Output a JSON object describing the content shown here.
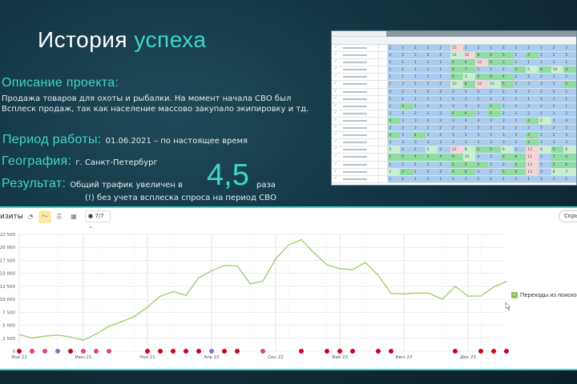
{
  "slide": {
    "title_part1": "История",
    "title_part2": "успеха",
    "description_heading": "Описание проекта:",
    "description": "Продажа товаров для охоты и рыбалки. На момент начала СВО был Всплеск продаж, так как население массово закупало экипировку и тд.",
    "period_heading": "Период работы:",
    "period_value": "01.06.2021 – по настоящее время",
    "geo_heading": "География:",
    "geo_value": "г. Санкт-Петербург",
    "result_heading": "Результат:",
    "result_text": "Общий трафик увеличен в",
    "result_number": "4,5",
    "result_unit": "раза",
    "result_note": "(!) без учета всплеска спроса на период СВО",
    "accent_color": "#3ed7c8"
  },
  "positions_table": {
    "rows": [
      {
        "v": [
          2,
          2,
          2,
          2,
          2,
          15,
          1,
          1,
          1,
          2,
          2,
          2,
          2,
          2,
          2
        ],
        "c": "b b b b b p b b b b b b b b b"
      },
      {
        "v": [
          2,
          2,
          2,
          2,
          2,
          14,
          15,
          8,
          8,
          5,
          2,
          4,
          2,
          2,
          2
        ],
        "c": "b b b b b lg p g g g b g b b b"
      },
      {
        "v": [
          1,
          1,
          1,
          1,
          1,
          8,
          6,
          12,
          9,
          3,
          1,
          1,
          1,
          1,
          1
        ],
        "c": "b b b b b g g p g g b b b b b"
      },
      {
        "v": [
          1,
          1,
          1,
          1,
          1,
          8,
          7,
          1,
          2,
          2,
          4,
          5,
          4,
          10,
          4
        ],
        "c": "b b b b b g g b b b g lg g lg g"
      },
      {
        "v": [
          1,
          1,
          1,
          1,
          1,
          6,
          3,
          6,
          8,
          4,
          2,
          2,
          2,
          1,
          2
        ],
        "c": "b b b b b g lg g g g b b b b b"
      },
      {
        "v": [
          2,
          3,
          2,
          2,
          2,
          10,
          8,
          12,
          10,
          5,
          3,
          3,
          3,
          3,
          5
        ],
        "c": "b b b b b lg g p lg g b b b b g"
      },
      {
        "v": [
          2,
          2,
          1,
          2,
          2,
          2,
          2,
          2,
          2,
          2,
          2,
          2,
          2,
          2,
          1
        ],
        "c": "b b b b b b b b b b b b b b b"
      },
      {
        "v": [
          1,
          1,
          1,
          1,
          1,
          1,
          1,
          1,
          1,
          1,
          1,
          1,
          1,
          1,
          1
        ],
        "c": "b b b b b b b b b b b b b b b"
      },
      {
        "v": [
          2,
          4,
          2,
          2,
          2,
          3,
          3,
          3,
          4,
          2,
          2,
          2,
          2,
          2,
          1
        ],
        "c": "b g b b b b b b g b b b b b b"
      },
      {
        "v": [
          2,
          2,
          2,
          2,
          2,
          6,
          6,
          1,
          5,
          2,
          2,
          2,
          1,
          1,
          2
        ],
        "c": "b b b b b g g b g b b b b b b"
      },
      {
        "v": [
          4,
          3,
          3,
          3,
          3,
          3,
          3,
          3,
          3,
          3,
          3,
          4,
          2,
          3,
          3
        ],
        "c": "g b b b b b b b b b b g lg b b"
      },
      {
        "v": [
          2,
          2,
          2,
          2,
          2,
          2,
          2,
          2,
          2,
          2,
          2,
          2,
          2,
          2,
          2
        ],
        "c": "b b b b b b b b b b b b b b b"
      },
      {
        "v": [
          4,
          3,
          4,
          3,
          2,
          3,
          3,
          3,
          3,
          3,
          3,
          4,
          2,
          2,
          3
        ],
        "c": "g b g b b b b b b b b g b b b"
      },
      {
        "v": [
          3,
          3,
          3,
          3,
          3,
          3,
          3,
          3,
          3,
          3,
          3,
          4,
          3,
          3,
          3
        ],
        "c": "b b b b b b b b b b b g b b b"
      },
      {
        "v": [
          5,
          2,
          2,
          5,
          2,
          12,
          8,
          5,
          5,
          6,
          1,
          12,
          8,
          5,
          6
        ],
        "c": "lg b b lg b p lg g g lg b p lg g lg"
      },
      {
        "v": [
          5,
          6,
          4,
          5,
          4,
          9,
          10,
          3,
          3,
          8,
          8,
          11,
          3,
          7,
          6
        ],
        "c": "g g g g g g lg b b g g p b g g"
      },
      {
        "v": [
          2,
          2,
          2,
          2,
          2,
          6,
          5,
          5,
          3,
          2,
          4,
          13,
          3,
          5,
          6
        ],
        "c": "b b b b b g g g b b g p b g g"
      },
      {
        "v": [
          1,
          4,
          2,
          2,
          2,
          9,
          6,
          3,
          2,
          5,
          6,
          13,
          3,
          8,
          7
        ],
        "c": "lg g b b b g g b b g g p b lg lg"
      },
      {
        "v": [
          1,
          1,
          1,
          1,
          1,
          1,
          1,
          1,
          1,
          1,
          1,
          1,
          1,
          1,
          1
        ],
        "c": "b b b b b b b b b b b b b b b"
      }
    ]
  },
  "metrica": {
    "title": "изиты",
    "segments": "7/7",
    "hide_button": "Скрыт",
    "legend_label": "Переходы из поиско",
    "series_color": "#9ccc65",
    "toolbar_icons": [
      "pie-chart-icon",
      "line-chart-icon",
      "stacked-chart-icon",
      "bar-chart-icon"
    ]
  },
  "chart_data": {
    "type": "line",
    "ylim": [
      0,
      22500
    ],
    "yticks": [
      "0",
      "2 500",
      "5 000",
      "7 500",
      "10 000",
      "12 500",
      "15 000",
      "17 500",
      "20 000",
      "22 500"
    ],
    "xtick_labels": [
      "Янв 21",
      "Июн 21",
      "Ноя 21",
      "Апр 22",
      "Сен 22",
      "Фев 23",
      "Июл 23",
      "Дек 23"
    ],
    "xtick_month_index": [
      0,
      5,
      10,
      15,
      20,
      25,
      30,
      35
    ],
    "x_start": "Янв 21",
    "x_step": "month",
    "grid": true,
    "legend": "right",
    "series": [
      {
        "name": "Переходы из поиско",
        "values": [
          3200,
          2550,
          2900,
          3100,
          2750,
          2150,
          3300,
          4800,
          5700,
          6700,
          8500,
          10600,
          11500,
          10750,
          14150,
          15500,
          16500,
          16450,
          13000,
          13500,
          17800,
          20450,
          21500,
          18900,
          16650,
          15900,
          15700,
          17100,
          14600,
          11100,
          11050,
          11200,
          11150,
          10000,
          12500,
          10600,
          10650,
          12350,
          13450
        ]
      }
    ],
    "annotations": [
      {
        "month_index": 0,
        "color": "#d0021b"
      },
      {
        "month_index": 1,
        "color": "#e0457b"
      },
      {
        "month_index": 2,
        "color": "#e0457b"
      },
      {
        "month_index": 3,
        "color": "#8a6fd1"
      },
      {
        "month_index": 4,
        "color": "#d0021b"
      },
      {
        "month_index": 5,
        "color": "#e0457b"
      },
      {
        "month_index": 6,
        "color": "#e0457b"
      },
      {
        "month_index": 7,
        "color": "#e0457b"
      },
      {
        "month_index": 10,
        "color": "#d0021b"
      },
      {
        "month_index": 11,
        "color": "#d0021b"
      },
      {
        "month_index": 12,
        "color": "#d0021b"
      },
      {
        "month_index": 13,
        "color": "#d0021b"
      },
      {
        "month_index": 14,
        "color": "#d0021b"
      },
      {
        "month_index": 15,
        "color": "#8a6fd1"
      },
      {
        "month_index": 16,
        "color": "#d0021b"
      },
      {
        "month_index": 17,
        "color": "#d0021b"
      },
      {
        "month_index": 19,
        "color": "#e0457b"
      },
      {
        "month_index": 22,
        "color": "#d0021b"
      },
      {
        "month_index": 24,
        "color": "#d0021b"
      },
      {
        "month_index": 25,
        "color": "#d0021b"
      },
      {
        "month_index": 26,
        "color": "#d0021b"
      },
      {
        "month_index": 28,
        "color": "#d0021b"
      },
      {
        "month_index": 29,
        "color": "#d0021b"
      },
      {
        "month_index": 34,
        "color": "#d0021b"
      },
      {
        "month_index": 36,
        "color": "#d0021b"
      },
      {
        "month_index": 37,
        "color": "#d0021b"
      },
      {
        "month_index": 38,
        "color": "#d0021b"
      }
    ]
  }
}
